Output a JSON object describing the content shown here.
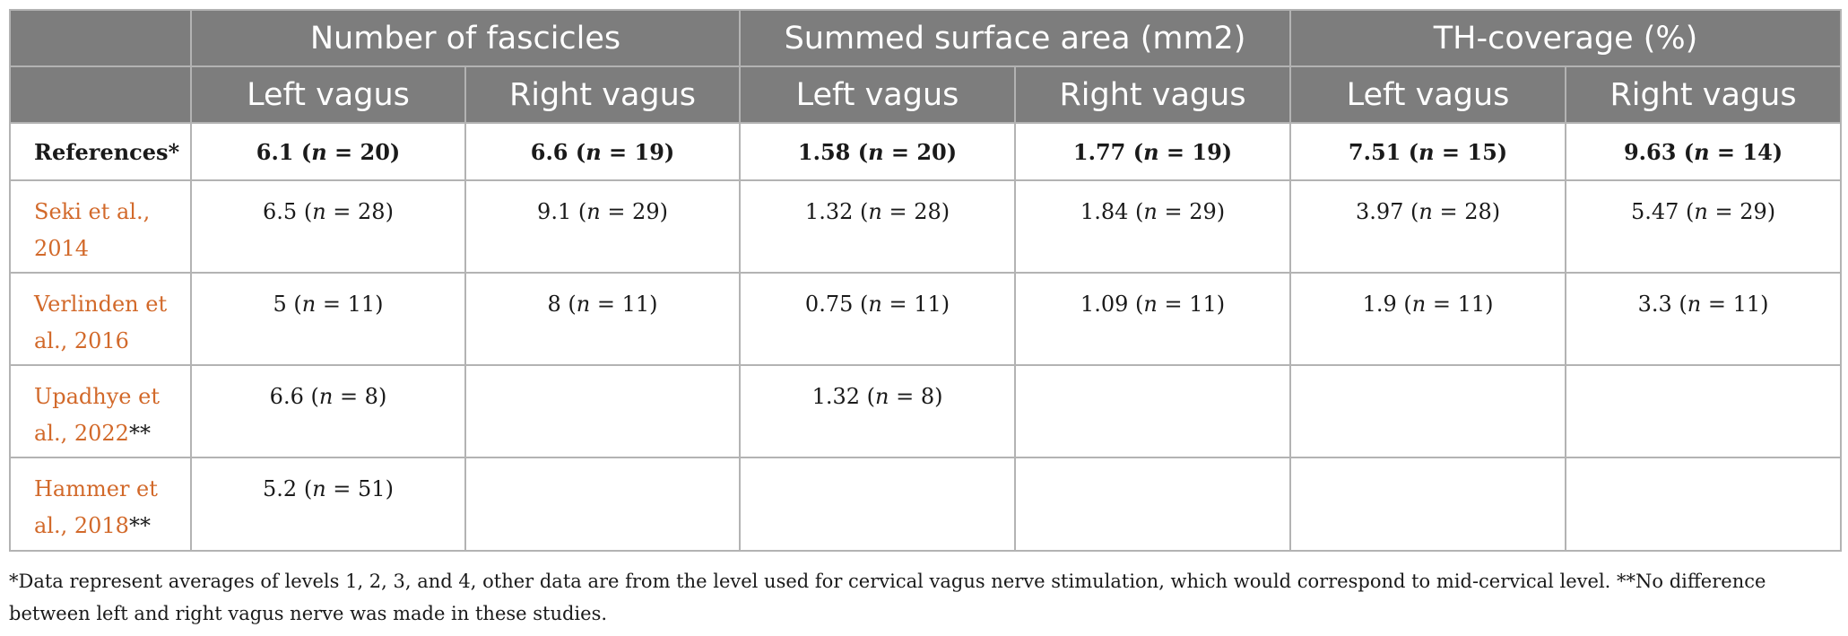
{
  "table": {
    "group_headers": [
      "Number of fascicles",
      "Summed surface area (mm2)",
      "TH-coverage (%)"
    ],
    "sub_headers": [
      "Left vagus",
      "Right vagus",
      "Left vagus",
      "Right vagus",
      "Left vagus",
      "Right vagus"
    ],
    "rows": [
      {
        "ref": "References*",
        "ref_suffix": "",
        "cells": [
          "6.1 (n = 20)",
          "6.6 (n = 19)",
          "1.58 (n = 20)",
          "1.77 (n = 19)",
          "7.51 (n = 15)",
          "9.63 (n = 14)"
        ]
      },
      {
        "ref": "Seki et al., 2014",
        "ref_suffix": "",
        "cells": [
          "6.5 (n = 28)",
          "9.1 (n = 29)",
          "1.32 (n = 28)",
          "1.84 (n = 29)",
          "3.97 (n = 28)",
          "5.47 (n = 29)"
        ]
      },
      {
        "ref": "Verlinden et al., 2016",
        "ref_suffix": "",
        "cells": [
          "5 (n = 11)",
          "8 (n = 11)",
          "0.75 (n = 11)",
          "1.09 (n = 11)",
          "1.9 (n = 11)",
          "3.3 (n = 11)"
        ]
      },
      {
        "ref": "Upadhye et al., 2022",
        "ref_suffix": "**",
        "cells": [
          "6.6 (n = 8)",
          "",
          "1.32 (n = 8)",
          "",
          "",
          ""
        ]
      },
      {
        "ref": "Hammer et al., 2018",
        "ref_suffix": "**",
        "cells": [
          "5.2 (n = 51)",
          "",
          "",
          "",
          "",
          ""
        ]
      }
    ]
  },
  "footnote": "*Data represent averages of levels 1, 2, 3, and 4, other data are from the level used for cervical vagus nerve stimulation, which would correspond to mid-cervical level. **No difference between left and right vagus nerve was made in these studies.",
  "colors": {
    "header_bg": "#7d7d7d",
    "header_text": "#ffffff",
    "grid": "#b3b3b3",
    "reference_link": "#d2692a",
    "text": "#1a1a1a"
  }
}
